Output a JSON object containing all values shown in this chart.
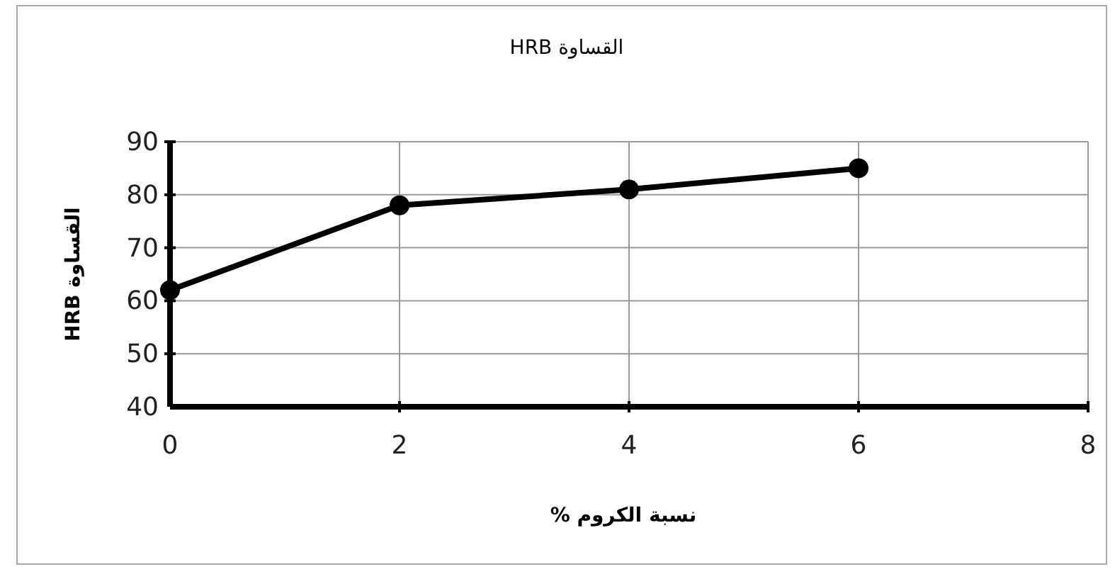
{
  "chart_data": {
    "type": "line",
    "title": "القساوة HRB",
    "xlabel": "نسبة الكروم %",
    "ylabel": "القساوة HRB",
    "x": [
      0,
      2,
      4,
      6
    ],
    "series": [
      {
        "color": "#000000",
        "values": [
          62,
          78,
          81,
          85
        ]
      }
    ],
    "xlim": [
      0,
      8
    ],
    "xticks": [
      0,
      2,
      4,
      6,
      8
    ],
    "ylim": [
      40,
      90
    ],
    "yticks": [
      40,
      50,
      60,
      70,
      80,
      90
    ],
    "grid": true,
    "marker": "circle",
    "line_style": "solid"
  }
}
